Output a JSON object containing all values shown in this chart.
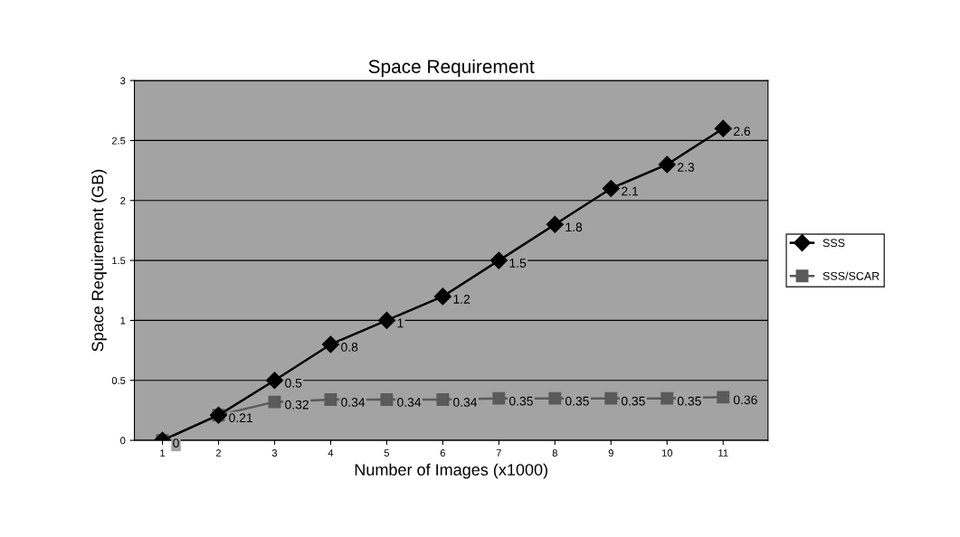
{
  "chart_data": {
    "type": "line",
    "title": "Space Requirement",
    "xlabel": "Number of Images (x1000)",
    "ylabel": "Space Requirement (GB)",
    "categories": [
      "1",
      "2",
      "3",
      "4",
      "5",
      "6",
      "7",
      "8",
      "9",
      "10",
      "11"
    ],
    "series": [
      {
        "name": "SSS",
        "color": "#000000",
        "marker": "diamond",
        "values": [
          0,
          0.21,
          0.5,
          0.8,
          1,
          1.2,
          1.5,
          1.8,
          2.1,
          2.3,
          2.6
        ],
        "value_labels": [
          null,
          null,
          "0.5",
          "0.8",
          "1",
          "1.2",
          "1.5",
          "1.8",
          "2.1",
          "2.3",
          "2.6"
        ]
      },
      {
        "name": "SSS/SCAR",
        "color": "#5a5a5a",
        "marker": "square",
        "values": [
          0,
          0.21,
          0.32,
          0.34,
          0.34,
          0.34,
          0.35,
          0.35,
          0.35,
          0.35,
          0.36
        ],
        "value_labels": [
          "0",
          "0.21",
          "0.32",
          "0.34",
          "0.34",
          "0.34",
          "0.35",
          "0.35",
          "0.35",
          "0.35",
          "0.36"
        ]
      }
    ],
    "ylim": [
      0,
      3
    ],
    "yticks": [
      0,
      0.5,
      1,
      1.5,
      2,
      2.5,
      3
    ],
    "grid": "y",
    "legend": "right",
    "line_style": "solid"
  }
}
